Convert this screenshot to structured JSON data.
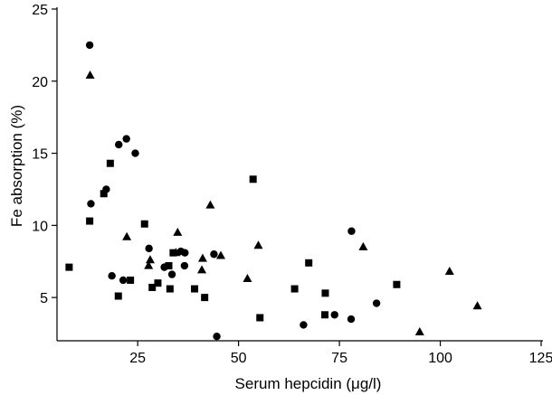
{
  "chart_data": {
    "type": "scatter",
    "title": "",
    "xlabel": "Serum hepcidin (μg/l)",
    "ylabel": "Fe absorption (%)",
    "xlim": [
      5,
      125
    ],
    "ylim": [
      2,
      25
    ],
    "xticks": [
      25,
      50,
      75,
      100,
      125
    ],
    "yticks": [
      5,
      10,
      15,
      20,
      25
    ],
    "grid": false,
    "legend": "none",
    "series": [
      {
        "marker": "circle",
        "points": [
          [
            13.1,
            22.5
          ],
          [
            13.4,
            11.5
          ],
          [
            17.2,
            12.5
          ],
          [
            20.3,
            15.6
          ],
          [
            22.2,
            16.0
          ],
          [
            24.4,
            15.0
          ],
          [
            18.6,
            6.5
          ],
          [
            21.4,
            6.2
          ],
          [
            27.8,
            8.4
          ],
          [
            31.6,
            7.1
          ],
          [
            33.5,
            6.6
          ],
          [
            35.7,
            8.2
          ],
          [
            36.7,
            8.1
          ],
          [
            36.6,
            7.2
          ],
          [
            43.9,
            8.0
          ],
          [
            44.6,
            2.3
          ],
          [
            66.1,
            3.1
          ],
          [
            73.8,
            3.8
          ],
          [
            77.9,
            3.5
          ],
          [
            78.0,
            9.6
          ],
          [
            84.2,
            4.6
          ]
        ]
      },
      {
        "marker": "square",
        "points": [
          [
            8.0,
            7.1
          ],
          [
            13.1,
            10.3
          ],
          [
            16.6,
            12.2
          ],
          [
            18.2,
            14.3
          ],
          [
            20.2,
            5.1
          ],
          [
            23.2,
            6.2
          ],
          [
            26.7,
            10.1
          ],
          [
            28.6,
            5.7
          ],
          [
            30.0,
            6.0
          ],
          [
            32.7,
            7.2
          ],
          [
            33.0,
            5.6
          ],
          [
            33.8,
            8.1
          ],
          [
            39.1,
            5.6
          ],
          [
            41.6,
            5.0
          ],
          [
            53.6,
            13.2
          ],
          [
            55.3,
            3.6
          ],
          [
            63.9,
            5.6
          ],
          [
            67.4,
            7.4
          ],
          [
            71.5,
            5.3
          ],
          [
            71.4,
            3.8
          ],
          [
            89.2,
            5.9
          ]
        ]
      },
      {
        "marker": "triangle",
        "points": [
          [
            13.2,
            20.4
          ],
          [
            22.3,
            9.2
          ],
          [
            27.7,
            7.2
          ],
          [
            28.1,
            7.6
          ],
          [
            34.5,
            8.1
          ],
          [
            34.9,
            9.5
          ],
          [
            40.9,
            6.9
          ],
          [
            41.1,
            7.7
          ],
          [
            43.0,
            11.4
          ],
          [
            45.6,
            7.9
          ],
          [
            52.2,
            6.3
          ],
          [
            54.9,
            8.6
          ],
          [
            80.9,
            8.5
          ],
          [
            94.9,
            2.6
          ],
          [
            102.3,
            6.8
          ],
          [
            109.2,
            4.4
          ]
        ]
      }
    ]
  }
}
